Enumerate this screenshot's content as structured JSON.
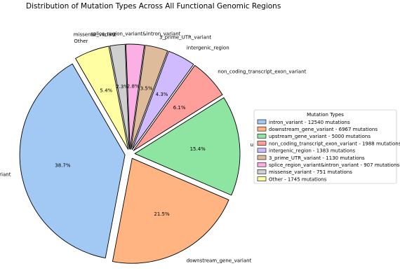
{
  "chart_data": {
    "type": "pie",
    "title": "Distribution of Mutation Types Across All Functional Genomic Regions",
    "slices": [
      {
        "label": "intron_variant",
        "value": 12540,
        "pct_label": "38.7%",
        "legend": "intron_variant - 12540 mutations",
        "color": "#a1c9f4"
      },
      {
        "label": "downstream_gene_variant",
        "value": 6967,
        "pct_label": "21.5%",
        "legend": "downstream_gene_variant - 6967 mutations",
        "color": "#ffb482"
      },
      {
        "label": "upstream_gene_variant",
        "value": 5000,
        "pct_label": "15.4%",
        "legend": "upstream_gene_variant - 5000 mutations",
        "color": "#8de5a1"
      },
      {
        "label": "non_coding_transcript_exon_variant",
        "value": 1988,
        "pct_label": "6.1%",
        "legend": "non_coding_transcript_exon_variant - 1988 mutations",
        "color": "#ff9f9b"
      },
      {
        "label": "intergenic_region",
        "value": 1383,
        "pct_label": "4.3%",
        "legend": "intergenic_region - 1383 mutations",
        "color": "#d0bbff"
      },
      {
        "label": "3_prime_UTR_variant",
        "value": 1130,
        "pct_label": "3.5%",
        "legend": "3_prime_UTR_variant - 1130 mutations",
        "color": "#debb9b"
      },
      {
        "label": "splice_region_variant&intron_variant",
        "value": 907,
        "pct_label": "2.8%",
        "legend": "splice_region_variant&intron_variant - 907 mutations",
        "color": "#fab0e4"
      },
      {
        "label": "missense_variant",
        "value": 751,
        "pct_label": "2.3%",
        "legend": "missense_variant - 751 mutations",
        "color": "#cfcfcf"
      },
      {
        "label": "Other",
        "value": 1745,
        "pct_label": "5.4%",
        "legend": "Other - 1745 mutations",
        "color": "#fffea3"
      }
    ],
    "legend": {
      "title": "Mutation Types",
      "placement": "center-right"
    }
  }
}
